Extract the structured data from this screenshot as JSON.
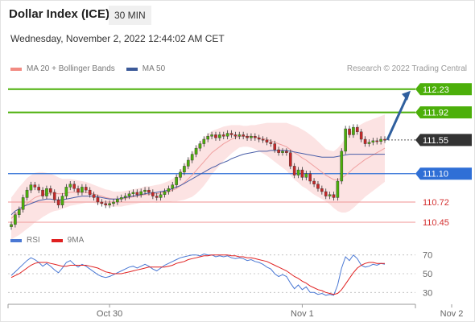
{
  "header": {
    "title": "Dollar Index (ICE)",
    "period": "30 MIN",
    "datetime": "Wednesday, November 2, 2022 12:44:02 AM CET"
  },
  "legend_top": [
    {
      "label": "MA 20 + Bollinger Bands",
      "color": "#f28b82"
    },
    {
      "label": "MA 50",
      "color": "#3c5a99"
    }
  ],
  "credit": "Research © 2022 Trading Central",
  "legend_bottom": [
    {
      "label": "RSI",
      "color": "#4a78d4"
    },
    {
      "label": "9MA",
      "color": "#e02020"
    }
  ],
  "colors": {
    "green": "#4caf0a",
    "blue": "#2f6fd6",
    "pink": "#f3a6a6",
    "dark": "#333333",
    "arrow": "#2f5f9e",
    "up_candle": "#4caf0a",
    "down_candle": "#c62828"
  },
  "chart_data": {
    "type": "line",
    "price_axis": {
      "ylim": [
        110.3,
        112.4
      ]
    },
    "x_labels": [
      {
        "label": "Oct 30",
        "index": 25
      },
      {
        "label": "Nov 1",
        "index": 74
      },
      {
        "label": "Nov 2",
        "index": 112
      }
    ],
    "levels": [
      {
        "value": 112.23,
        "label": "112.23",
        "style": "green"
      },
      {
        "value": 111.92,
        "label": "111.92",
        "style": "green"
      },
      {
        "value": 111.55,
        "label": "111.55",
        "style": "current"
      },
      {
        "value": 111.1,
        "label": "111.10",
        "style": "blue"
      },
      {
        "value": 110.72,
        "label": "110.72",
        "style": "pink"
      },
      {
        "value": 110.45,
        "label": "110.45",
        "style": "pink"
      }
    ],
    "projection": {
      "from": 111.55,
      "to": 112.23
    },
    "close": [
      110.42,
      110.55,
      110.62,
      110.78,
      110.88,
      110.95,
      110.92,
      110.88,
      110.8,
      110.9,
      110.85,
      110.75,
      110.68,
      110.8,
      110.92,
      110.96,
      110.9,
      110.85,
      110.92,
      110.88,
      110.82,
      110.78,
      110.72,
      110.7,
      110.68,
      110.7,
      110.72,
      110.76,
      110.78,
      110.8,
      110.83,
      110.85,
      110.82,
      110.86,
      110.88,
      110.85,
      110.8,
      110.78,
      110.82,
      110.86,
      110.9,
      110.95,
      111.05,
      111.12,
      111.2,
      111.28,
      111.36,
      111.44,
      111.5,
      111.56,
      111.6,
      111.62,
      111.58,
      111.62,
      111.6,
      111.64,
      111.62,
      111.6,
      111.62,
      111.6,
      111.58,
      111.6,
      111.58,
      111.56,
      111.55,
      111.52,
      111.5,
      111.42,
      111.38,
      111.4,
      111.38,
      111.2,
      111.08,
      111.15,
      111.05,
      111.1,
      111.0,
      110.96,
      110.9,
      110.86,
      110.8,
      110.82,
      110.78,
      111.0,
      111.4,
      111.7,
      111.62,
      111.72,
      111.66,
      111.56,
      111.5,
      111.52,
      111.54,
      111.53,
      111.56,
      111.55
    ],
    "ma50": [
      110.55,
      110.6,
      110.63,
      110.66,
      110.68,
      110.7,
      110.72,
      110.74,
      110.75,
      110.76,
      110.76,
      110.75,
      110.75,
      110.75,
      110.76,
      110.77,
      110.78,
      110.79,
      110.8,
      110.8,
      110.8,
      110.8,
      110.79,
      110.78,
      110.77,
      110.76,
      110.76,
      110.76,
      110.77,
      110.78,
      110.79,
      110.8,
      110.81,
      110.82,
      110.83,
      110.84,
      110.84,
      110.85,
      110.86,
      110.87,
      110.88,
      110.9,
      110.92,
      110.94,
      110.97,
      111.0,
      111.03,
      111.06,
      111.09,
      111.12,
      111.15,
      111.18,
      111.2,
      111.23,
      111.25,
      111.27,
      111.3,
      111.32,
      111.34,
      111.36,
      111.37,
      111.38,
      111.39,
      111.4,
      111.4,
      111.4,
      111.41,
      111.41,
      111.41,
      111.41,
      111.41,
      111.4,
      111.39,
      111.38,
      111.37,
      111.36,
      111.35,
      111.34,
      111.33,
      111.32,
      111.32,
      111.32,
      111.32,
      111.33,
      111.34,
      111.35,
      111.36,
      111.36,
      111.36,
      111.36,
      111.36,
      111.36,
      111.36,
      111.36,
      111.36,
      111.36
    ],
    "ma20": [
      110.5,
      110.55,
      110.6,
      110.65,
      110.7,
      110.74,
      110.78,
      110.8,
      110.82,
      110.83,
      110.84,
      110.84,
      110.83,
      110.83,
      110.84,
      110.85,
      110.85,
      110.85,
      110.85,
      110.85,
      110.84,
      110.83,
      110.81,
      110.8,
      110.78,
      110.77,
      110.76,
      110.76,
      110.76,
      110.77,
      110.78,
      110.79,
      110.8,
      110.81,
      110.82,
      110.82,
      110.83,
      110.83,
      110.84,
      110.85,
      110.86,
      110.88,
      110.9,
      110.94,
      110.98,
      111.03,
      111.08,
      111.14,
      111.2,
      111.26,
      111.32,
      111.38,
      111.42,
      111.46,
      111.5,
      111.53,
      111.56,
      111.58,
      111.6,
      111.6,
      111.6,
      111.6,
      111.59,
      111.58,
      111.57,
      111.56,
      111.54,
      111.52,
      111.5,
      111.48,
      111.46,
      111.42,
      111.38,
      111.35,
      111.31,
      111.28,
      111.24,
      111.2,
      111.16,
      111.12,
      111.08,
      111.05,
      111.02,
      111.02,
      111.04,
      111.08,
      111.12,
      111.17,
      111.21,
      111.25,
      111.29,
      111.32,
      111.35,
      111.38,
      111.41,
      111.44
    ],
    "bb_width": [
      0.28,
      0.3,
      0.32,
      0.33,
      0.34,
      0.34,
      0.33,
      0.32,
      0.3,
      0.28,
      0.26,
      0.24,
      0.22,
      0.2,
      0.19,
      0.18,
      0.17,
      0.16,
      0.15,
      0.14,
      0.13,
      0.12,
      0.12,
      0.11,
      0.11,
      0.11,
      0.1,
      0.1,
      0.1,
      0.1,
      0.1,
      0.1,
      0.1,
      0.1,
      0.11,
      0.11,
      0.11,
      0.12,
      0.12,
      0.13,
      0.14,
      0.15,
      0.17,
      0.2,
      0.23,
      0.26,
      0.29,
      0.31,
      0.32,
      0.32,
      0.31,
      0.29,
      0.27,
      0.25,
      0.23,
      0.21,
      0.19,
      0.17,
      0.15,
      0.14,
      0.14,
      0.15,
      0.16,
      0.18,
      0.2,
      0.22,
      0.24,
      0.26,
      0.28,
      0.3,
      0.32,
      0.34,
      0.36,
      0.37,
      0.38,
      0.38,
      0.38,
      0.38,
      0.37,
      0.36,
      0.35,
      0.36,
      0.38,
      0.42,
      0.46,
      0.5,
      0.52,
      0.53,
      0.52,
      0.51,
      0.5,
      0.49,
      0.48,
      0.47,
      0.46,
      0.45
    ],
    "rsi_axis": {
      "ylim": [
        20,
        80
      ],
      "ticks": [
        70,
        50,
        30
      ]
    },
    "rsi": [
      48,
      52,
      56,
      60,
      64,
      67,
      65,
      62,
      58,
      61,
      58,
      54,
      51,
      56,
      62,
      64,
      60,
      57,
      60,
      58,
      55,
      52,
      49,
      47,
      46,
      47,
      49,
      51,
      53,
      55,
      57,
      58,
      56,
      58,
      60,
      58,
      55,
      53,
      56,
      59,
      61,
      63,
      65,
      67,
      68,
      69,
      70,
      70,
      69,
      71,
      70,
      70,
      68,
      69,
      68,
      69,
      67,
      66,
      67,
      66,
      64,
      65,
      63,
      62,
      60,
      57,
      55,
      50,
      47,
      49,
      47,
      40,
      34,
      38,
      33,
      36,
      30,
      30,
      28,
      29,
      27,
      28,
      27,
      38,
      56,
      68,
      64,
      70,
      66,
      59,
      57,
      58,
      60,
      59,
      61,
      60
    ],
    "rsi_ma": [
      46,
      48,
      50,
      53,
      56,
      59,
      61,
      62,
      62,
      62,
      61,
      60,
      59,
      58,
      58,
      59,
      59,
      59,
      59,
      59,
      58,
      57,
      56,
      54,
      52,
      51,
      50,
      50,
      50,
      51,
      52,
      53,
      54,
      55,
      56,
      57,
      57,
      57,
      57,
      57,
      58,
      59,
      61,
      62,
      63,
      65,
      66,
      67,
      68,
      69,
      69,
      70,
      70,
      70,
      70,
      70,
      69,
      69,
      68,
      68,
      67,
      67,
      66,
      65,
      64,
      63,
      61,
      59,
      57,
      55,
      53,
      50,
      47,
      45,
      42,
      40,
      37,
      35,
      33,
      32,
      30,
      29,
      28,
      29,
      33,
      39,
      45,
      51,
      56,
      59,
      61,
      62,
      62,
      61,
      61,
      61
    ]
  }
}
